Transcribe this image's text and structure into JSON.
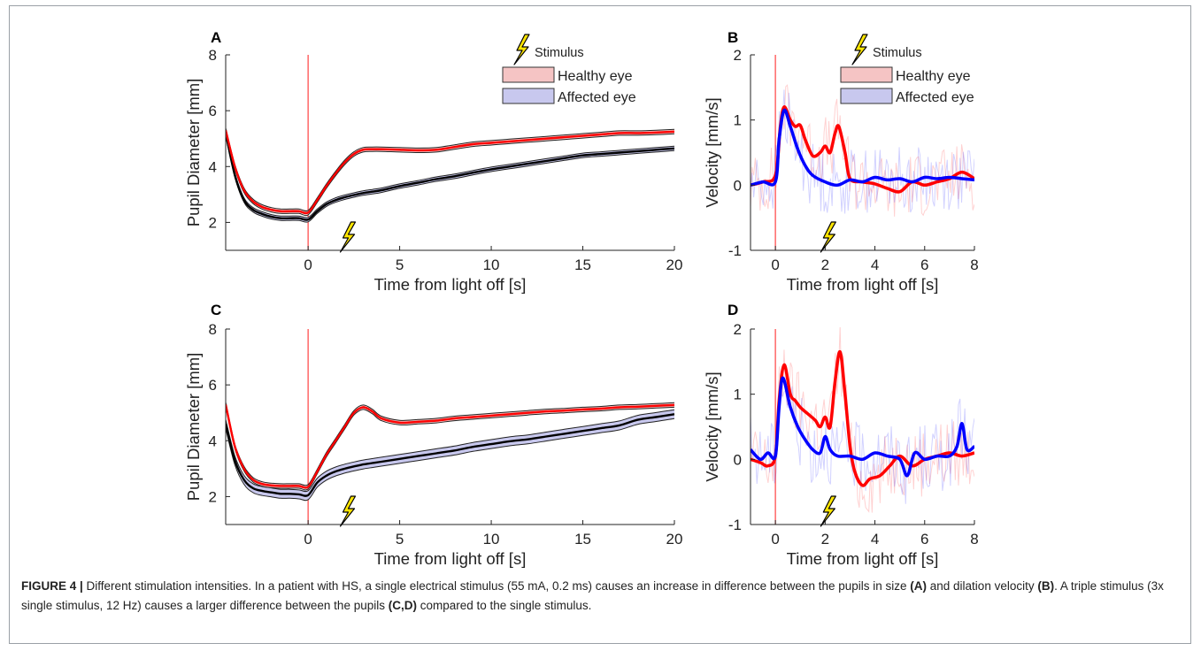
{
  "panels": {
    "A": {
      "letter": "A"
    },
    "B": {
      "letter": "B"
    },
    "C": {
      "letter": "C"
    },
    "D": {
      "letter": "D"
    }
  },
  "legend": {
    "stimulus_label": "Stimulus",
    "healthy_label": "Healthy eye",
    "affected_label": "Affected eye"
  },
  "caption": {
    "figure_label": "FIGURE 4 |",
    "text_1": " Different stimulation intensities. In a patient with HS, a single electrical stimulus (55 mA, 0.2 ms) causes an increase in difference between the pupils in size ",
    "ref_A": "(A)",
    "text_2": " and dilation velocity ",
    "ref_B": "(B)",
    "text_3": ". A triple stimulus (3x single stimulus, 12 Hz) causes a larger difference between the pupils ",
    "ref_CD": "(C,D)",
    "text_4": " compared to the single stimulus."
  },
  "colors": {
    "healthy_line": "#ff0000",
    "healthy_band": "#f5c4c4",
    "affected_line": "#0000ff",
    "affected_band": "#c8c8ee",
    "diameter_affected_line": "#000000",
    "light_off_marker": "#ff4040",
    "stimulus_icon": "#ffe600"
  },
  "chart_data": [
    {
      "panel": "A",
      "type": "line",
      "xlabel": "Time from light off [s]",
      "ylabel": "Pupil Diameter [mm]",
      "xlim": [
        -4.5,
        20
      ],
      "ylim": [
        1,
        8
      ],
      "xticks": [
        "0",
        "5",
        "10",
        "15",
        "20"
      ],
      "yticks": [
        "2",
        "4",
        "6",
        "8"
      ],
      "light_off_x": 0,
      "stimulus_x": 2,
      "series": [
        {
          "name": "Healthy eye",
          "x": [
            -4.5,
            -4,
            -3.5,
            -3,
            -2.5,
            -2,
            -1.5,
            -1,
            -0.5,
            0,
            0.5,
            1,
            1.5,
            2,
            2.5,
            3,
            3.5,
            4,
            5,
            6,
            7,
            8,
            9,
            10,
            11,
            12,
            13,
            14,
            15,
            16,
            17,
            18,
            19,
            20
          ],
          "y": [
            5.3,
            4.0,
            3.15,
            2.75,
            2.55,
            2.45,
            2.4,
            2.4,
            2.4,
            2.35,
            2.8,
            3.3,
            3.75,
            4.15,
            4.45,
            4.6,
            4.62,
            4.62,
            4.6,
            4.58,
            4.6,
            4.7,
            4.8,
            4.85,
            4.9,
            4.95,
            5.0,
            5.05,
            5.1,
            5.15,
            5.2,
            5.2,
            5.22,
            5.25
          ],
          "band": 0.08
        },
        {
          "name": "Affected eye",
          "x": [
            -4.5,
            -4,
            -3.5,
            -3,
            -2.5,
            -2,
            -1.5,
            -1,
            -0.5,
            0,
            0.5,
            1,
            1.5,
            2,
            2.5,
            3,
            3.5,
            4,
            5,
            6,
            7,
            8,
            9,
            10,
            11,
            12,
            13,
            14,
            15,
            16,
            17,
            18,
            19,
            20
          ],
          "y": [
            5.2,
            3.7,
            2.8,
            2.45,
            2.3,
            2.2,
            2.15,
            2.15,
            2.15,
            2.1,
            2.4,
            2.65,
            2.8,
            2.9,
            2.98,
            3.05,
            3.1,
            3.15,
            3.3,
            3.42,
            3.55,
            3.65,
            3.78,
            3.9,
            4.0,
            4.1,
            4.2,
            4.3,
            4.4,
            4.45,
            4.5,
            4.55,
            4.6,
            4.65
          ],
          "band": 0.08
        }
      ]
    },
    {
      "panel": "B",
      "type": "line",
      "xlabel": "Time from light off [s]",
      "ylabel": "Velocity [mm/s]",
      "xlim": [
        -1,
        8
      ],
      "ylim": [
        -1,
        2
      ],
      "xticks": [
        "0",
        "2",
        "4",
        "6",
        "8"
      ],
      "yticks": [
        "-1",
        "0",
        "1",
        "2"
      ],
      "light_off_x": 0,
      "stimulus_x": 2,
      "series": [
        {
          "name": "Healthy eye",
          "x": [
            -1,
            -0.5,
            0,
            0.2,
            0.35,
            0.6,
            0.8,
            1.0,
            1.2,
            1.5,
            1.8,
            2.0,
            2.2,
            2.4,
            2.55,
            2.8,
            3.0,
            3.5,
            4.0,
            4.5,
            5.0,
            5.5,
            6.0,
            6.5,
            7.0,
            7.5,
            8.0
          ],
          "y": [
            0,
            0.05,
            0.15,
            0.9,
            1.2,
            1.0,
            0.9,
            0.92,
            0.7,
            0.45,
            0.5,
            0.6,
            0.5,
            0.8,
            0.9,
            0.5,
            0.1,
            0.05,
            0.02,
            -0.05,
            -0.1,
            0.05,
            0.0,
            0.05,
            0.1,
            0.2,
            0.1
          ]
        },
        {
          "name": "Affected eye",
          "x": [
            -1,
            -0.5,
            0,
            0.15,
            0.35,
            0.6,
            0.9,
            1.2,
            1.5,
            2.0,
            2.5,
            3.0,
            3.5,
            4.0,
            4.5,
            5.0,
            5.5,
            6.0,
            6.5,
            7.0,
            7.5,
            8.0
          ],
          "y": [
            0,
            0.05,
            0.05,
            0.7,
            1.15,
            0.9,
            0.55,
            0.3,
            0.15,
            0.05,
            0.0,
            0.08,
            0.05,
            0.12,
            0.08,
            0.1,
            0.05,
            0.12,
            0.1,
            0.12,
            0.1,
            0.08
          ]
        }
      ]
    },
    {
      "panel": "C",
      "type": "line",
      "xlabel": "Time from light off [s]",
      "ylabel": "Pupil Diameter [mm]",
      "xlim": [
        -4.5,
        20
      ],
      "ylim": [
        1,
        8
      ],
      "xticks": [
        "0",
        "5",
        "10",
        "15",
        "20"
      ],
      "yticks": [
        "2",
        "4",
        "6",
        "8"
      ],
      "light_off_x": 0,
      "stimulus_x": 2,
      "series": [
        {
          "name": "Healthy eye",
          "x": [
            -4.5,
            -4,
            -3.5,
            -3,
            -2.5,
            -2,
            -1.5,
            -1,
            -0.5,
            0,
            0.5,
            1,
            1.5,
            2,
            2.5,
            3,
            3.5,
            4,
            5,
            6,
            7,
            8,
            9,
            10,
            11,
            12,
            13,
            14,
            15,
            16,
            17,
            18,
            19,
            20
          ],
          "y": [
            5.3,
            3.8,
            3.0,
            2.6,
            2.45,
            2.4,
            2.38,
            2.38,
            2.38,
            2.35,
            2.9,
            3.5,
            4.0,
            4.5,
            5.0,
            5.2,
            5.05,
            4.8,
            4.65,
            4.68,
            4.72,
            4.8,
            4.85,
            4.9,
            4.95,
            5.0,
            5.05,
            5.08,
            5.12,
            5.15,
            5.2,
            5.22,
            5.25,
            5.28
          ],
          "band": 0.08
        },
        {
          "name": "Affected eye",
          "x": [
            -4.5,
            -4,
            -3.5,
            -3,
            -2.5,
            -2,
            -1.5,
            -1,
            -0.5,
            0,
            0.5,
            1,
            1.5,
            2,
            2.5,
            3,
            3.5,
            4,
            5,
            6,
            7,
            8,
            9,
            10,
            11,
            12,
            13,
            14,
            15,
            16,
            17,
            18,
            19,
            20
          ],
          "y": [
            4.6,
            3.3,
            2.6,
            2.3,
            2.2,
            2.15,
            2.1,
            2.1,
            2.08,
            2.05,
            2.5,
            2.75,
            2.9,
            3.0,
            3.08,
            3.15,
            3.2,
            3.25,
            3.35,
            3.45,
            3.55,
            3.65,
            3.78,
            3.88,
            3.98,
            4.05,
            4.15,
            4.25,
            4.35,
            4.45,
            4.55,
            4.75,
            4.85,
            4.95
          ],
          "band": 0.16
        }
      ]
    },
    {
      "panel": "D",
      "type": "line",
      "xlabel": "Time from light off [s]",
      "ylabel": "Velocity [mm/s]",
      "xlim": [
        -1,
        8
      ],
      "ylim": [
        -1,
        2
      ],
      "xticks": [
        "0",
        "2",
        "4",
        "6",
        "8"
      ],
      "yticks": [
        "-1",
        "0",
        "1",
        "2"
      ],
      "light_off_x": 0,
      "stimulus_x": 2,
      "series": [
        {
          "name": "Healthy eye",
          "x": [
            -1,
            -0.6,
            -0.3,
            0,
            0.15,
            0.35,
            0.6,
            0.8,
            1.0,
            1.3,
            1.6,
            1.8,
            2.0,
            2.2,
            2.4,
            2.6,
            2.8,
            3.0,
            3.2,
            3.5,
            3.8,
            4.2,
            4.6,
            5.0,
            5.5,
            6.0,
            6.5,
            7.0,
            7.5,
            8.0
          ],
          "y": [
            0,
            -0.05,
            -0.1,
            0.05,
            0.9,
            1.45,
            1.0,
            0.9,
            0.8,
            0.7,
            0.6,
            0.5,
            0.65,
            0.5,
            1.2,
            1.65,
            1.0,
            0.2,
            -0.2,
            -0.4,
            -0.3,
            -0.25,
            -0.1,
            0.05,
            -0.1,
            0.0,
            0.05,
            0.1,
            0.05,
            0.1
          ]
        },
        {
          "name": "Affected eye",
          "x": [
            -1,
            -0.6,
            -0.3,
            0,
            0.15,
            0.3,
            0.6,
            0.9,
            1.2,
            1.5,
            1.8,
            2.0,
            2.2,
            2.5,
            3.0,
            3.5,
            4.0,
            4.5,
            5.0,
            5.3,
            5.6,
            6.0,
            6.5,
            7.0,
            7.3,
            7.5,
            7.7,
            8.0
          ],
          "y": [
            0.15,
            0.0,
            0.1,
            0.05,
            0.8,
            1.25,
            0.8,
            0.5,
            0.3,
            0.15,
            0.1,
            0.35,
            0.15,
            0.05,
            0.05,
            0.0,
            0.1,
            0.05,
            0.0,
            -0.25,
            0.1,
            0.0,
            0.05,
            0.05,
            0.2,
            0.55,
            0.15,
            0.2
          ]
        }
      ]
    }
  ]
}
